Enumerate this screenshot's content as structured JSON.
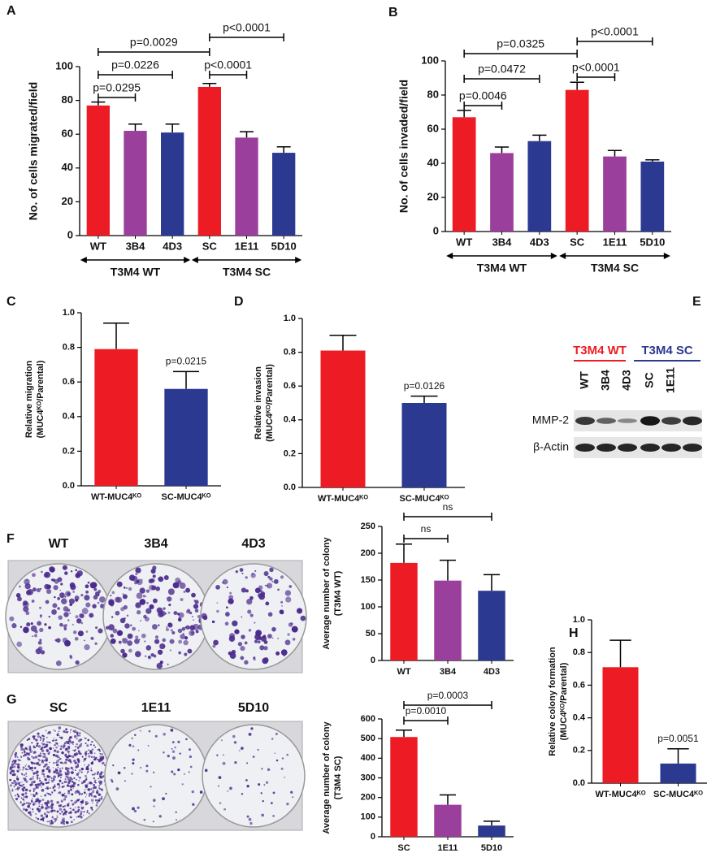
{
  "chart_data": [
    {
      "panel": "A",
      "type": "bar",
      "ylabel": "No. of cells migrated/field",
      "categories": [
        "WT",
        "3B4",
        "4D3",
        "SC",
        "1E11",
        "5D10"
      ],
      "values": [
        77,
        62,
        61,
        88,
        58,
        49
      ],
      "errors": [
        2,
        4,
        5,
        2,
        3.5,
        3.5
      ],
      "colors": [
        "#ed1c24",
        "#9b3f9c",
        "#2b3990",
        "#ed1c24",
        "#9b3f9c",
        "#2b3990"
      ],
      "ylim": [
        0,
        100
      ],
      "yticks": [
        0,
        20,
        40,
        60,
        80,
        100
      ],
      "groups": [
        "T3M4 WT",
        "T3M4 SC"
      ],
      "comparisons": [
        "p=0.0295",
        "p=0.0226",
        "p=0.0029",
        "p<0.0001",
        "p<0.0001"
      ]
    },
    {
      "panel": "B",
      "type": "bar",
      "ylabel": "No. of cells invaded/field",
      "categories": [
        "WT",
        "3B4",
        "4D3",
        "SC",
        "1E11",
        "5D10"
      ],
      "values": [
        67,
        46,
        53,
        83,
        44,
        41
      ],
      "errors": [
        4,
        3.5,
        3.5,
        4.5,
        3.5,
        1
      ],
      "colors": [
        "#ed1c24",
        "#9b3f9c",
        "#2b3990",
        "#ed1c24",
        "#9b3f9c",
        "#2b3990"
      ],
      "ylim": [
        0,
        100
      ],
      "yticks": [
        0,
        20,
        40,
        60,
        80,
        100
      ],
      "groups": [
        "T3M4 WT",
        "T3M4 SC"
      ],
      "comparisons": [
        "p=0.0046",
        "p=0.0472",
        "p=0.0325",
        "p<0.0001",
        "p<0.0001"
      ]
    },
    {
      "panel": "C",
      "type": "bar",
      "ylabel": [
        "Relative migration",
        "(MUC4ᴷᴼ/Parental)"
      ],
      "categories": [
        "WT-MUC4ᴷᴼ",
        "SC-MUC4ᴷᴼ"
      ],
      "values": [
        0.79,
        0.56
      ],
      "errors": [
        0.15,
        0.1
      ],
      "colors": [
        "#ed1c24",
        "#2b3990"
      ],
      "ylim": [
        0,
        1.0
      ],
      "yticks": [
        {
          "value": 0,
          "label": "0.0"
        },
        0.2,
        0.4,
        0.6,
        0.8,
        {
          "value": 1.0,
          "label": "1.0"
        }
      ],
      "annotations": [
        "p=0.0215"
      ]
    },
    {
      "panel": "D",
      "type": "bar",
      "ylabel": [
        "Relative invasion",
        "(MUC4ᴷᴼ/Parental)"
      ],
      "categories": [
        "WT-MUC4ᴷᴼ",
        "SC-MUC4ᴷᴼ"
      ],
      "values": [
        0.81,
        0.5
      ],
      "errors": [
        0.09,
        0.04
      ],
      "colors": [
        "#ed1c24",
        "#2b3990"
      ],
      "ylim": [
        0,
        1.0
      ],
      "yticks": [
        {
          "value": 0,
          "label": "0.0"
        },
        0.2,
        0.4,
        0.6,
        0.8,
        {
          "value": 1.0,
          "label": "1.0"
        }
      ],
      "annotations": [
        "p=0.0126"
      ]
    },
    {
      "panel": "F",
      "type": "bar",
      "ylabel": [
        "Average number of colony",
        "(T3M4 WT)"
      ],
      "categories": [
        "WT",
        "3B4",
        "4D3"
      ],
      "values": [
        182,
        149,
        130
      ],
      "errors": [
        35,
        38,
        30
      ],
      "colors": [
        "#ed1c24",
        "#9b3f9c",
        "#2b3990"
      ],
      "ylim": [
        0,
        250
      ],
      "yticks": [
        0,
        50,
        100,
        150,
        200,
        250
      ],
      "comparisons": [
        "ns",
        "ns"
      ]
    },
    {
      "panel": "G",
      "type": "bar",
      "ylabel": [
        "Average number of colony",
        "(T3M4 SC)"
      ],
      "categories": [
        "SC",
        "1E11",
        "5D10"
      ],
      "values": [
        508,
        163,
        57
      ],
      "errors": [
        35,
        50,
        22
      ],
      "colors": [
        "#ed1c24",
        "#9b3f9c",
        "#2b3990"
      ],
      "ylim": [
        0,
        600
      ],
      "yticks": [
        0,
        100,
        200,
        300,
        400,
        500,
        600
      ],
      "comparisons": [
        "p=0.0010",
        "p=0.0003"
      ]
    },
    {
      "panel": "H",
      "type": "bar",
      "ylabel": [
        "Relative colony formation",
        "(MUC4ᴷᴼ/Parental)"
      ],
      "categories": [
        "WT-MUC4ᴷᴼ",
        "SC-MUC4ᴷᴼ"
      ],
      "values": [
        0.71,
        0.12
      ],
      "errors": [
        0.165,
        0.09
      ],
      "colors": [
        "#ed1c24",
        "#2b3990"
      ],
      "ylim": [
        0,
        1.0
      ],
      "yticks": [
        {
          "value": 0,
          "label": "0.0"
        },
        0.2,
        0.4,
        0.6,
        0.8,
        {
          "value": 1.0,
          "label": "1.0"
        }
      ],
      "annotations": [
        "p=0.0051"
      ]
    }
  ],
  "blot": {
    "panel": "E",
    "headers": [
      "T3M4 WT",
      "T3M4 SC"
    ],
    "lanes": [
      "WT",
      "3B4",
      "4D3",
      "SC",
      "1E11"
    ],
    "rows": [
      "MMP-2",
      "β-Actin"
    ]
  },
  "plates": [
    [
      "WT",
      "3B4",
      "4D3"
    ],
    [
      "SC",
      "1E11",
      "5D10"
    ]
  ]
}
